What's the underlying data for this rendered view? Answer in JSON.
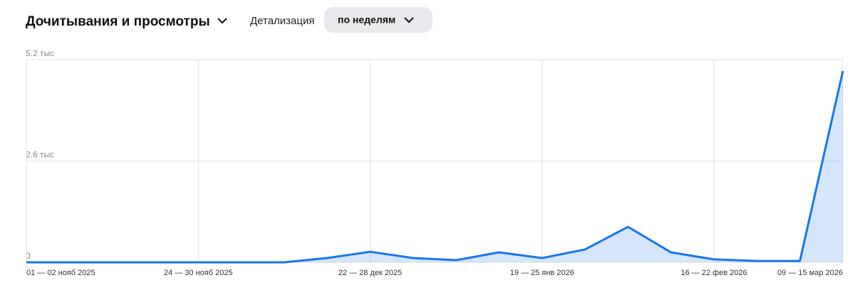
{
  "header": {
    "title": "Дочитывания и просмотры",
    "detail_label": "Детализация",
    "period": "по неделям"
  },
  "chart_data": {
    "type": "area",
    "categories": [
      "01 — 02 нояб 2025",
      null,
      null,
      null,
      "24 — 30 нояб 2025",
      null,
      null,
      null,
      "22 — 28 дек 2025",
      null,
      null,
      null,
      "19 — 25 янв 2026",
      null,
      null,
      null,
      "16 — 22 фев 2026",
      null,
      null,
      "09 — 15 мар 2026"
    ],
    "series": [
      {
        "color": "#1577f0",
        "values": [
          0,
          0,
          0,
          0,
          0,
          0,
          0,
          110,
          270,
          110,
          55,
          255,
          110,
          330,
          910,
          255,
          75,
          35,
          35,
          4910
        ]
      }
    ],
    "ylim": [
      0,
      5200
    ],
    "yticks": [
      {
        "value": 0,
        "label": "0"
      },
      {
        "value": 2600,
        "label": "2.6 тыс"
      },
      {
        "value": 5200,
        "label": "5.2 тыс"
      }
    ],
    "grid": true
  }
}
